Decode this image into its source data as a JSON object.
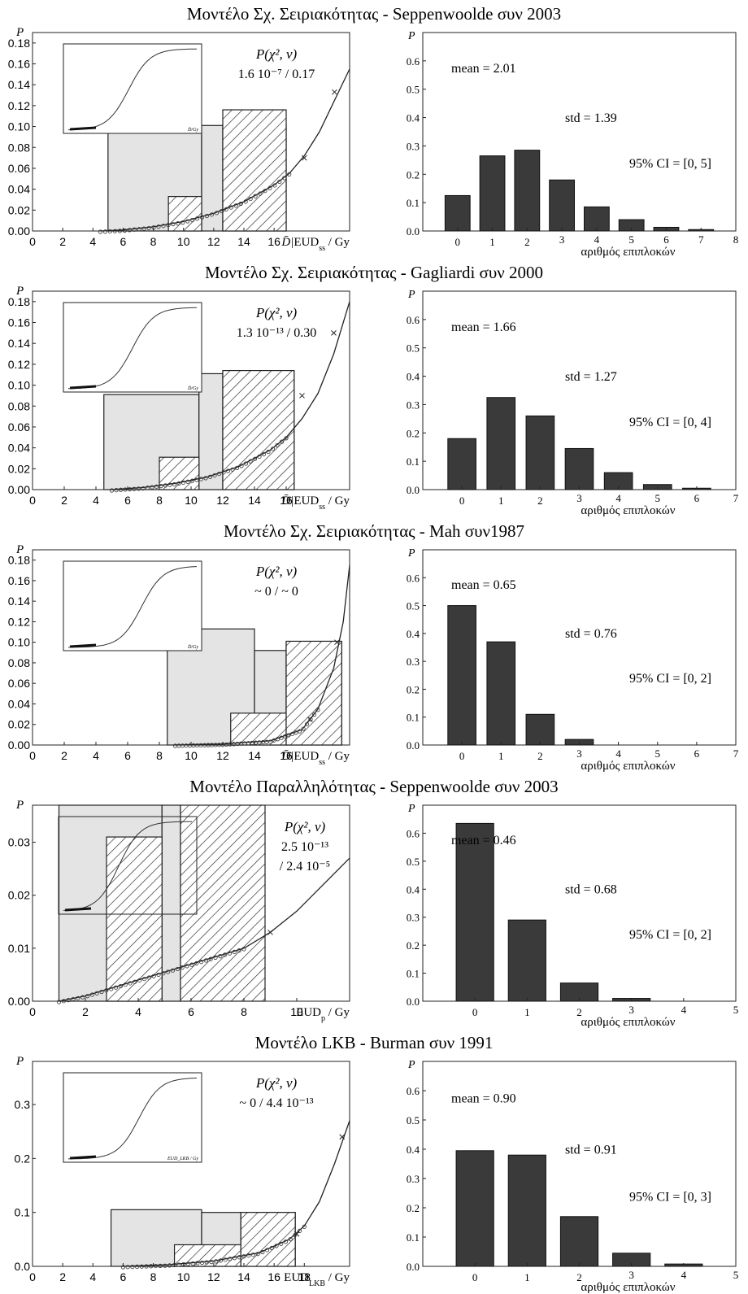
{
  "rows": [
    {
      "title": "Μοντέλο Σχ. Σειριακότητας - Seppenwoolde συν 2003",
      "left": {
        "ylabel": "P",
        "xticks": [
          "0",
          "2",
          "4",
          "6",
          "8",
          "10",
          "12",
          "14",
          "16"
        ],
        "xlim": [
          0,
          21
        ],
        "yticks": [
          "0.00",
          "0.02",
          "0.04",
          "0.06",
          "0.08",
          "0.10",
          "0.12",
          "0.14",
          "0.16",
          "0.18"
        ],
        "ylim": [
          0,
          0.19
        ],
        "xlabel_prefix": "D̄|",
        "xlabel_main": "EUD",
        "xlabel_sub": "ss",
        "xlabel_unit": " / Gy",
        "stat_label": "P(χ², ν)",
        "stat_value": "1.6 10⁻⁷  /  0.17",
        "bins_gray": [
          {
            "x0": 5.0,
            "x1": 11.2,
            "y": 0.094
          },
          {
            "x0": 11.2,
            "x1": 12.6,
            "y": 0.101
          },
          {
            "x0": 12.6,
            "x1": 16.8,
            "y": 0.102
          }
        ],
        "bins_hatch": [
          {
            "x0": 9.0,
            "x1": 11.2,
            "y": 0.033
          },
          {
            "x0": 12.6,
            "x1": 16.8,
            "y": 0.116
          }
        ],
        "curve": [
          [
            4.5,
            0.0
          ],
          [
            6,
            0.001
          ],
          [
            8,
            0.004
          ],
          [
            10,
            0.009
          ],
          [
            12,
            0.017
          ],
          [
            14,
            0.028
          ],
          [
            16,
            0.044
          ],
          [
            17,
            0.055
          ],
          [
            18,
            0.072
          ],
          [
            19,
            0.095
          ],
          [
            20,
            0.125
          ],
          [
            21,
            0.155
          ]
        ],
        "crosses": [
          [
            18,
            0.07
          ],
          [
            20,
            0.133
          ]
        ],
        "inset": {
          "xlabel": "D̄/Gy"
        }
      },
      "right": {
        "ylabel": "P",
        "xlabel": "αριθμός επιπλοκών",
        "categories": [
          "0",
          "1",
          "2",
          "3",
          "4",
          "5",
          "6",
          "7",
          "8"
        ],
        "xlim": [
          -1.0,
          8.0
        ],
        "ylim": [
          0,
          0.7
        ],
        "yticks": [
          "0.0",
          "0.1",
          "0.2",
          "0.3",
          "0.4",
          "0.5",
          "0.6"
        ],
        "values": [
          0.125,
          0.265,
          0.285,
          0.18,
          0.085,
          0.04,
          0.013,
          0.005,
          0.0
        ],
        "mean": "mean = 2.01",
        "std": "std = 1.39",
        "ci": "95% CI = [0, 5]"
      }
    },
    {
      "title": "Μοντέλο Σχ. Σειριακότητας - Gagliardi συν 2000",
      "left": {
        "ylabel": "P",
        "xticks": [
          "0",
          "2",
          "4",
          "6",
          "8",
          "10",
          "12",
          "14",
          "16"
        ],
        "xlim": [
          0,
          20
        ],
        "yticks": [
          "0.00",
          "0.02",
          "0.04",
          "0.06",
          "0.08",
          "0.10",
          "0.12",
          "0.14",
          "0.16",
          "0.18"
        ],
        "ylim": [
          0,
          0.19
        ],
        "xlabel_prefix": "D̄|",
        "xlabel_main": "EUD",
        "xlabel_sub": "ss",
        "xlabel_unit": " / Gy",
        "stat_label": "P(χ², ν)",
        "stat_value": "1.3 10⁻¹³  /  0.30",
        "bins_gray": [
          {
            "x0": 4.5,
            "x1": 10.5,
            "y": 0.091
          },
          {
            "x0": 10.5,
            "x1": 12.0,
            "y": 0.111
          },
          {
            "x0": 12.0,
            "x1": 16.5,
            "y": 0.113
          }
        ],
        "bins_hatch": [
          {
            "x0": 8.0,
            "x1": 10.5,
            "y": 0.031
          },
          {
            "x0": 12.0,
            "x1": 16.5,
            "y": 0.114
          }
        ],
        "curve": [
          [
            5,
            0.0
          ],
          [
            7,
            0.002
          ],
          [
            9,
            0.006
          ],
          [
            11,
            0.012
          ],
          [
            13,
            0.022
          ],
          [
            15,
            0.038
          ],
          [
            16,
            0.05
          ],
          [
            17,
            0.068
          ],
          [
            18,
            0.092
          ],
          [
            19,
            0.13
          ],
          [
            20,
            0.18
          ]
        ],
        "crosses": [
          [
            17,
            0.09
          ],
          [
            19,
            0.15
          ]
        ],
        "inset": {
          "xlabel": "D̄/Gy"
        }
      },
      "right": {
        "ylabel": "P",
        "xlabel": "αριθμός επιπλοκών",
        "categories": [
          "0",
          "1",
          "2",
          "3",
          "4",
          "5",
          "6",
          "7"
        ],
        "xlim": [
          -1.0,
          7.0
        ],
        "ylim": [
          0,
          0.7
        ],
        "yticks": [
          "0.0",
          "0.1",
          "0.2",
          "0.3",
          "0.4",
          "0.5",
          "0.6"
        ],
        "values": [
          0.18,
          0.325,
          0.26,
          0.145,
          0.06,
          0.018,
          0.005,
          0.0
        ],
        "mean": "mean = 1.66",
        "std": "std = 1.27",
        "ci": "95% CI = [0, 4]"
      }
    },
    {
      "title": "Μοντέλο Σχ. Σειριακότητας - Mah συν1987",
      "left": {
        "ylabel": "P",
        "xticks": [
          "0",
          "2",
          "4",
          "6",
          "8",
          "10",
          "12",
          "14",
          "16"
        ],
        "xlim": [
          0,
          20
        ],
        "yticks": [
          "0.00",
          "0.02",
          "0.04",
          "0.06",
          "0.08",
          "0.10",
          "0.12",
          "0.14",
          "0.16",
          "0.18"
        ],
        "ylim": [
          0,
          0.19
        ],
        "xlabel_prefix": "D̄|",
        "xlabel_main": "EUD",
        "xlabel_sub": "ss",
        "xlabel_unit": " / Gy",
        "stat_label": "P(χ², ν)",
        "stat_value": "~ 0  /  ~ 0",
        "bins_gray": [
          {
            "x0": 8.5,
            "x1": 14.0,
            "y": 0.113
          },
          {
            "x0": 14.0,
            "x1": 16.0,
            "y": 0.092
          },
          {
            "x0": 16.0,
            "x1": 19.5,
            "y": 0.1
          }
        ],
        "bins_hatch": [
          {
            "x0": 12.5,
            "x1": 16.0,
            "y": 0.031
          },
          {
            "x0": 16.0,
            "x1": 19.5,
            "y": 0.101
          }
        ],
        "curve": [
          [
            9,
            0.0
          ],
          [
            12,
            0.001
          ],
          [
            15,
            0.004
          ],
          [
            17,
            0.015
          ],
          [
            18,
            0.035
          ],
          [
            19,
            0.075
          ],
          [
            19.6,
            0.12
          ],
          [
            20,
            0.175
          ]
        ],
        "crosses": [
          [
            17.5,
            0.025
          ],
          [
            19.2,
            0.1
          ]
        ],
        "inset": {
          "xlabel": "D̄/Gy"
        }
      },
      "right": {
        "ylabel": "P",
        "xlabel": "αριθμός επιπλοκών",
        "categories": [
          "0",
          "1",
          "2",
          "3",
          "4",
          "5",
          "6",
          "7"
        ],
        "xlim": [
          -1.0,
          7.0
        ],
        "ylim": [
          0,
          0.7
        ],
        "yticks": [
          "0.0",
          "0.1",
          "0.2",
          "0.3",
          "0.4",
          "0.5",
          "0.6"
        ],
        "values": [
          0.5,
          0.37,
          0.11,
          0.02,
          0.0,
          0.0,
          0.0,
          0.0
        ],
        "mean": "mean = 0.65",
        "std": "std = 0.76",
        "ci": "95% CI = [0, 2]"
      }
    },
    {
      "title": "Μοντέλο Παραλληλότητας - Seppenwoolde συν 2003",
      "left": {
        "ylabel": "P",
        "xticks": [
          "0",
          "2",
          "4",
          "6",
          "8",
          "10"
        ],
        "xlim": [
          0,
          12
        ],
        "yticks": [
          "0.00",
          "0.01",
          "0.02",
          "0.03"
        ],
        "ylim": [
          0,
          0.037
        ],
        "xlabel_prefix": "",
        "xlabel_main": "EUD",
        "xlabel_sub": "p",
        "xlabel_unit": " / Gy",
        "stat_label": "P(χ², ν)",
        "stat_value": "2.5 10⁻¹³",
        "stat_value2": "/ 2.4 10⁻⁵",
        "bins_gray": [
          {
            "x0": 1.0,
            "x1": 4.9,
            "y": 0.037
          },
          {
            "x0": 4.9,
            "x1": 5.6,
            "y": 0.037
          }
        ],
        "bins_hatch": [
          {
            "x0": 2.8,
            "x1": 4.9,
            "y": 0.031
          },
          {
            "x0": 5.6,
            "x1": 8.8,
            "y": 0.037
          }
        ],
        "curve": [
          [
            1,
            0.0
          ],
          [
            2,
            0.001
          ],
          [
            3,
            0.0025
          ],
          [
            4,
            0.004
          ],
          [
            5,
            0.0055
          ],
          [
            6,
            0.007
          ],
          [
            7,
            0.0085
          ],
          [
            8,
            0.01
          ],
          [
            9,
            0.013
          ],
          [
            10,
            0.017
          ],
          [
            11,
            0.022
          ],
          [
            12,
            0.027
          ]
        ],
        "crosses": [
          [
            9,
            0.013
          ]
        ],
        "inset": {
          "xlabel": ""
        }
      },
      "right": {
        "ylabel": "P",
        "xlabel": "αριθμός επιπλοκών",
        "categories": [
          "0",
          "1",
          "2",
          "3",
          "4",
          "5"
        ],
        "xlim": [
          -1.0,
          5.0
        ],
        "ylim": [
          0,
          0.7
        ],
        "yticks": [
          "0.0",
          "0.1",
          "0.2",
          "0.3",
          "0.4",
          "0.5",
          "0.6"
        ],
        "values": [
          0.635,
          0.29,
          0.065,
          0.01,
          0.0,
          0.0
        ],
        "mean": "mean = 0.46",
        "std": "std = 0.68",
        "ci": "95% CI = [0, 2]"
      }
    },
    {
      "title": "Μοντέλο LKB - Burman συν 1991",
      "left": {
        "ylabel": "P",
        "xticks": [
          "0",
          "2",
          "4",
          "6",
          "8",
          "10",
          "12",
          "14",
          "16",
          "18"
        ],
        "xlim": [
          0,
          21
        ],
        "yticks": [
          "0.0",
          "0.1",
          "0.2",
          "0.3"
        ],
        "ylim": [
          0,
          0.38
        ],
        "xlabel_prefix": "",
        "xlabel_main": "EUD",
        "xlabel_sub": "LKB",
        "xlabel_unit": " / Gy",
        "stat_label": "P(χ², ν)",
        "stat_value": "~ 0  /  4.4 10⁻¹³",
        "bins_gray": [
          {
            "x0": 5.2,
            "x1": 11.2,
            "y": 0.105
          },
          {
            "x0": 11.2,
            "x1": 13.8,
            "y": 0.1
          },
          {
            "x0": 13.8,
            "x1": 17.4,
            "y": 0.1
          }
        ],
        "bins_hatch": [
          {
            "x0": 9.4,
            "x1": 13.8,
            "y": 0.04
          },
          {
            "x0": 13.8,
            "x1": 17.4,
            "y": 0.1
          }
        ],
        "curve": [
          [
            6,
            0.0
          ],
          [
            9,
            0.003
          ],
          [
            12,
            0.01
          ],
          [
            15,
            0.025
          ],
          [
            17,
            0.05
          ],
          [
            18,
            0.075
          ],
          [
            19,
            0.12
          ],
          [
            20,
            0.19
          ],
          [
            21,
            0.27
          ]
        ],
        "crosses": [
          [
            17.5,
            0.06
          ],
          [
            20.5,
            0.24
          ]
        ],
        "inset": {
          "xlabel": "EUD_LKB / Gy"
        }
      },
      "right": {
        "ylabel": "P",
        "xlabel": "αριθμός επιπλοκών",
        "categories": [
          "0",
          "1",
          "2",
          "3",
          "4",
          "5"
        ],
        "xlim": [
          -1.0,
          5.0
        ],
        "ylim": [
          0,
          0.7
        ],
        "yticks": [
          "0.0",
          "0.1",
          "0.2",
          "0.3",
          "0.4",
          "0.5",
          "0.6"
        ],
        "values": [
          0.395,
          0.38,
          0.17,
          0.045,
          0.008,
          0.0
        ],
        "mean": "mean = 0.90",
        "std": "std = 0.91",
        "ci": "95% CI = [0, 3]"
      }
    }
  ]
}
